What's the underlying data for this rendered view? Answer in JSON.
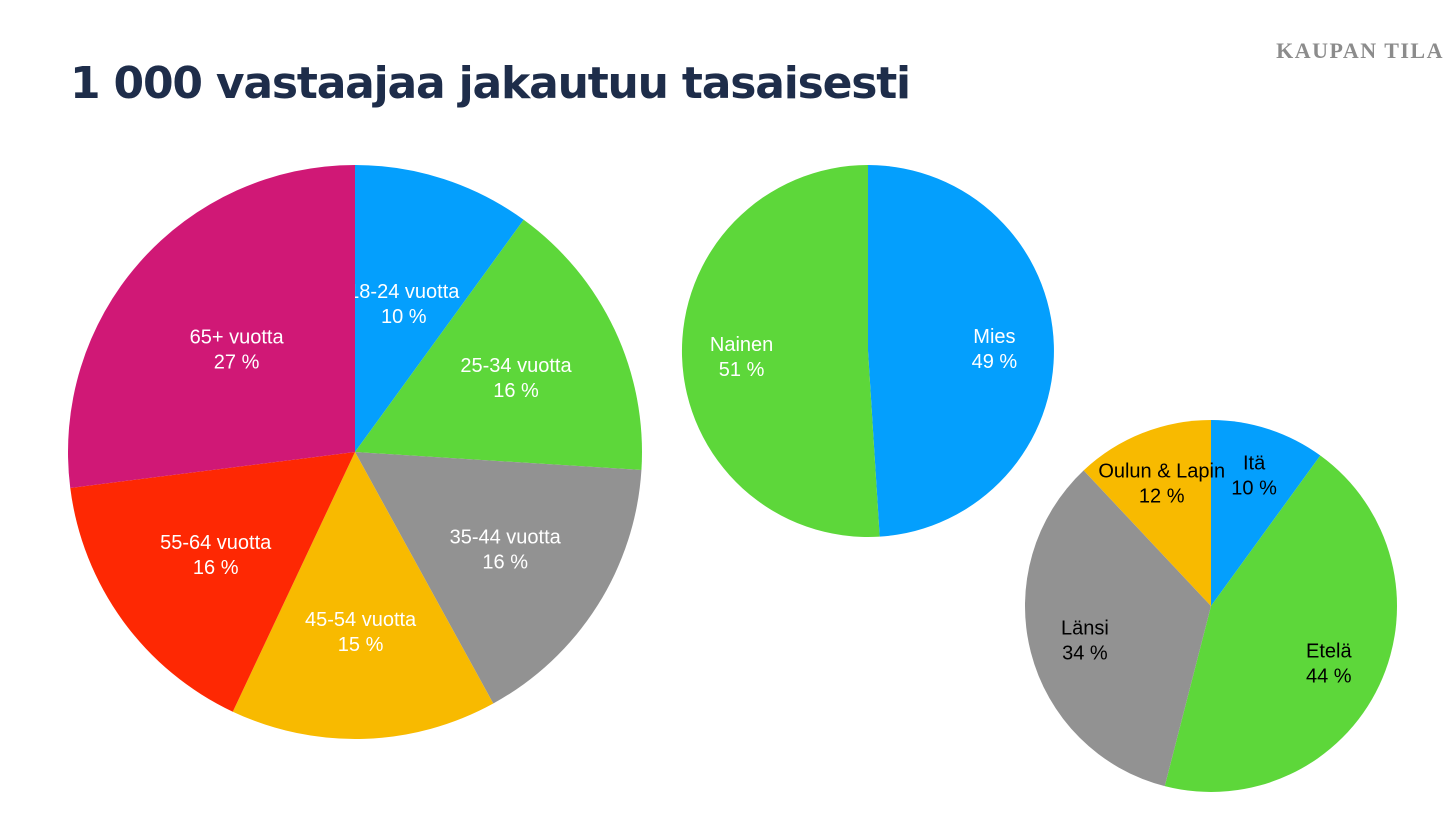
{
  "brand": "KAUPAN TILA",
  "title": "1 000 vastaajaa jakautuu tasaisesti",
  "chart_data": [
    {
      "type": "pie",
      "title": "",
      "slices": [
        {
          "label": "18-24 vuotta",
          "value": 10,
          "value_label": "10 %",
          "color": "#049ffd",
          "label_color": "#ffffff"
        },
        {
          "label": "25-34 vuotta",
          "value": 16,
          "value_label": "16 %",
          "color": "#5dd73a",
          "label_color": "#ffffff"
        },
        {
          "label": "35-44 vuotta",
          "value": 16,
          "value_label": "16 %",
          "color": "#929292",
          "label_color": "#ffffff"
        },
        {
          "label": "45-54 vuotta",
          "value": 15,
          "value_label": "15 %",
          "color": "#f8ba00",
          "label_color": "#ffffff"
        },
        {
          "label": "55-64 vuotta",
          "value": 16,
          "value_label": "16 %",
          "color": "#fe2803",
          "label_color": "#ffffff"
        },
        {
          "label": "65+ vuotta",
          "value": 27,
          "value_label": "27 %",
          "color": "#d01876",
          "label_color": "#ffffff"
        }
      ]
    },
    {
      "type": "pie",
      "title": "",
      "slices": [
        {
          "label": "Mies",
          "value": 49,
          "value_label": "49 %",
          "color": "#049ffd",
          "label_color": "#ffffff"
        },
        {
          "label": "Nainen",
          "value": 51,
          "value_label": "51 %",
          "color": "#5dd73a",
          "label_color": "#ffffff"
        }
      ]
    },
    {
      "type": "pie",
      "title": "",
      "slices": [
        {
          "label": "Itä",
          "value": 10,
          "value_label": "10 %",
          "color": "#049ffd",
          "label_color": "#000000"
        },
        {
          "label": "Etelä",
          "value": 44,
          "value_label": "44 %",
          "color": "#5dd73a",
          "label_color": "#000000"
        },
        {
          "label": "Länsi",
          "value": 34,
          "value_label": "34 %",
          "color": "#929292",
          "label_color": "#000000"
        },
        {
          "label": "Oulun & Lapin",
          "value": 12,
          "value_label": "12 %",
          "color": "#f8ba00",
          "label_color": "#000000"
        }
      ]
    }
  ]
}
